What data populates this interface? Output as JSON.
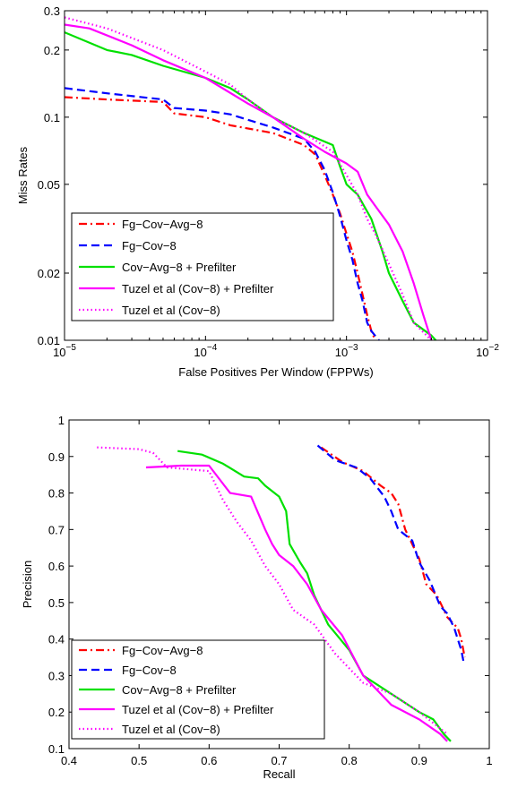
{
  "chart_data": [
    {
      "type": "line",
      "title": "",
      "xlabel": "False Positives Per Window (FPPWs)",
      "ylabel": "Miss Rates",
      "xscale": "log",
      "yscale": "log",
      "xlim": [
        1e-05,
        0.01
      ],
      "ylim": [
        0.01,
        0.3
      ],
      "x_ticks": [
        {
          "value": 1e-05,
          "base": "10",
          "exp": "−5"
        },
        {
          "value": 0.0001,
          "base": "10",
          "exp": "−4"
        },
        {
          "value": 0.001,
          "base": "10",
          "exp": "−3"
        },
        {
          "value": 0.01,
          "base": "10",
          "exp": "−2"
        }
      ],
      "y_ticks": [
        {
          "value": 0.01,
          "label": "0.01"
        },
        {
          "value": 0.02,
          "label": "0.02"
        },
        {
          "value": 0.05,
          "label": "0.05"
        },
        {
          "value": 0.1,
          "label": "0.1"
        },
        {
          "value": 0.2,
          "label": "0.2"
        },
        {
          "value": 0.3,
          "label": "0.3"
        }
      ],
      "grid": false,
      "legend_position": "bottom-left",
      "series": [
        {
          "name": "Fg−Cov−Avg−8",
          "color": "#ff0000",
          "dash": "dashdot",
          "points": [
            [
              1e-05,
              0.123
            ],
            [
              2e-05,
              0.12
            ],
            [
              5e-05,
              0.117
            ],
            [
              6e-05,
              0.104
            ],
            [
              0.0001,
              0.1
            ],
            [
              0.00015,
              0.092
            ],
            [
              0.0003,
              0.085
            ],
            [
              0.0005,
              0.075
            ],
            [
              0.0006,
              0.068
            ],
            [
              0.0007,
              0.055
            ],
            [
              0.0008,
              0.045
            ],
            [
              0.0009,
              0.037
            ],
            [
              0.001,
              0.03
            ],
            [
              0.0011,
              0.025
            ],
            [
              0.0012,
              0.02
            ],
            [
              0.0013,
              0.016
            ],
            [
              0.0014,
              0.013
            ],
            [
              0.0015,
              0.011
            ],
            [
              0.0016,
              0.01
            ]
          ]
        },
        {
          "name": "Fg−Cov−8",
          "color": "#0000ff",
          "dash": "dashed",
          "points": [
            [
              1e-05,
              0.135
            ],
            [
              2e-05,
              0.128
            ],
            [
              5e-05,
              0.12
            ],
            [
              6e-05,
              0.11
            ],
            [
              0.0001,
              0.107
            ],
            [
              0.00015,
              0.103
            ],
            [
              0.0003,
              0.09
            ],
            [
              0.0005,
              0.08
            ],
            [
              0.0006,
              0.07
            ],
            [
              0.0007,
              0.058
            ],
            [
              0.0008,
              0.046
            ],
            [
              0.0009,
              0.036
            ],
            [
              0.001,
              0.028
            ],
            [
              0.0011,
              0.023
            ],
            [
              0.0012,
              0.018
            ],
            [
              0.0013,
              0.015
            ],
            [
              0.0014,
              0.012
            ],
            [
              0.0015,
              0.011
            ],
            [
              0.0017,
              0.01
            ]
          ]
        },
        {
          "name": "Cov−Avg−8 + Prefilter",
          "color": "#00e000",
          "dash": "solid",
          "points": [
            [
              1e-05,
              0.24
            ],
            [
              2e-05,
              0.2
            ],
            [
              3e-05,
              0.19
            ],
            [
              5e-05,
              0.17
            ],
            [
              0.0001,
              0.15
            ],
            [
              0.00015,
              0.135
            ],
            [
              0.0002,
              0.12
            ],
            [
              0.0003,
              0.1
            ],
            [
              0.0005,
              0.085
            ],
            [
              0.0008,
              0.075
            ],
            [
              0.0009,
              0.06
            ],
            [
              0.001,
              0.05
            ],
            [
              0.0012,
              0.045
            ],
            [
              0.0015,
              0.035
            ],
            [
              0.0018,
              0.025
            ],
            [
              0.002,
              0.02
            ],
            [
              0.0025,
              0.015
            ],
            [
              0.003,
              0.012
            ],
            [
              0.004,
              0.0105
            ],
            [
              0.0043,
              0.01
            ]
          ]
        },
        {
          "name": "Tuzel et al (Cov−8) + Prefilter",
          "color": "#ff00ff",
          "dash": "solid",
          "points": [
            [
              1e-05,
              0.26
            ],
            [
              1.5e-05,
              0.25
            ],
            [
              3e-05,
              0.21
            ],
            [
              5e-05,
              0.18
            ],
            [
              0.0001,
              0.15
            ],
            [
              0.0002,
              0.115
            ],
            [
              0.0003,
              0.1
            ],
            [
              0.0005,
              0.08
            ],
            [
              0.0007,
              0.07
            ],
            [
              0.001,
              0.062
            ],
            [
              0.0012,
              0.057
            ],
            [
              0.0014,
              0.045
            ],
            [
              0.0016,
              0.04
            ],
            [
              0.002,
              0.033
            ],
            [
              0.0025,
              0.025
            ],
            [
              0.003,
              0.018
            ],
            [
              0.0035,
              0.013
            ],
            [
              0.004,
              0.01
            ]
          ]
        },
        {
          "name": "Tuzel et al (Cov−8)",
          "color": "#ff00ff",
          "dash": "dotted",
          "points": [
            [
              1e-05,
              0.28
            ],
            [
              2e-05,
              0.25
            ],
            [
              5e-05,
              0.2
            ],
            [
              0.0001,
              0.16
            ],
            [
              0.00015,
              0.14
            ],
            [
              0.0002,
              0.12
            ],
            [
              0.0003,
              0.1
            ],
            [
              0.0005,
              0.085
            ],
            [
              0.0008,
              0.07
            ],
            [
              0.001,
              0.055
            ],
            [
              0.0012,
              0.045
            ],
            [
              0.0014,
              0.035
            ],
            [
              0.0016,
              0.03
            ],
            [
              0.002,
              0.022
            ],
            [
              0.0025,
              0.016
            ],
            [
              0.003,
              0.012
            ],
            [
              0.004,
              0.01
            ]
          ]
        }
      ]
    },
    {
      "type": "line",
      "title": "",
      "xlabel": "Recall",
      "ylabel": "Precision",
      "xscale": "linear",
      "yscale": "linear",
      "xlim": [
        0.4,
        1
      ],
      "ylim": [
        0.1,
        1
      ],
      "x_ticks": [
        {
          "value": 0.4,
          "label": "0.4"
        },
        {
          "value": 0.5,
          "label": "0.5"
        },
        {
          "value": 0.6,
          "label": "0.6"
        },
        {
          "value": 0.7,
          "label": "0.7"
        },
        {
          "value": 0.8,
          "label": "0.8"
        },
        {
          "value": 0.9,
          "label": "0.9"
        },
        {
          "value": 1,
          "label": "1"
        }
      ],
      "y_ticks": [
        {
          "value": 0.1,
          "label": "0.1"
        },
        {
          "value": 0.2,
          "label": "0.2"
        },
        {
          "value": 0.3,
          "label": "0.3"
        },
        {
          "value": 0.4,
          "label": "0.4"
        },
        {
          "value": 0.5,
          "label": "0.5"
        },
        {
          "value": 0.6,
          "label": "0.6"
        },
        {
          "value": 0.7,
          "label": "0.7"
        },
        {
          "value": 0.8,
          "label": "0.8"
        },
        {
          "value": 0.9,
          "label": "0.9"
        },
        {
          "value": 1,
          "label": "1"
        }
      ],
      "grid": false,
      "legend_position": "bottom-left",
      "series": [
        {
          "name": "Fg−Cov−Avg−8",
          "color": "#ff0000",
          "dash": "dashdot",
          "points": [
            [
              0.76,
              0.925
            ],
            [
              0.79,
              0.885
            ],
            [
              0.82,
              0.86
            ],
            [
              0.845,
              0.82
            ],
            [
              0.86,
              0.8
            ],
            [
              0.87,
              0.77
            ],
            [
              0.88,
              0.7
            ],
            [
              0.89,
              0.66
            ],
            [
              0.9,
              0.62
            ],
            [
              0.91,
              0.55
            ],
            [
              0.925,
              0.52
            ],
            [
              0.94,
              0.46
            ],
            [
              0.955,
              0.43
            ],
            [
              0.96,
              0.4
            ],
            [
              0.965,
              0.35
            ]
          ]
        },
        {
          "name": "Fg−Cov−8",
          "color": "#0000ff",
          "dash": "dashed",
          "points": [
            [
              0.755,
              0.93
            ],
            [
              0.78,
              0.89
            ],
            [
              0.81,
              0.87
            ],
            [
              0.83,
              0.84
            ],
            [
              0.85,
              0.79
            ],
            [
              0.86,
              0.75
            ],
            [
              0.87,
              0.7
            ],
            [
              0.89,
              0.67
            ],
            [
              0.9,
              0.61
            ],
            [
              0.915,
              0.56
            ],
            [
              0.93,
              0.49
            ],
            [
              0.94,
              0.47
            ],
            [
              0.95,
              0.43
            ],
            [
              0.96,
              0.37
            ],
            [
              0.963,
              0.34
            ]
          ]
        },
        {
          "name": "Cov−Avg−8 + Prefilter",
          "color": "#00e000",
          "dash": "solid",
          "points": [
            [
              0.555,
              0.915
            ],
            [
              0.59,
              0.905
            ],
            [
              0.62,
              0.88
            ],
            [
              0.65,
              0.845
            ],
            [
              0.67,
              0.84
            ],
            [
              0.68,
              0.82
            ],
            [
              0.7,
              0.79
            ],
            [
              0.71,
              0.75
            ],
            [
              0.715,
              0.66
            ],
            [
              0.73,
              0.61
            ],
            [
              0.74,
              0.58
            ],
            [
              0.75,
              0.52
            ],
            [
              0.77,
              0.44
            ],
            [
              0.8,
              0.37
            ],
            [
              0.82,
              0.3
            ],
            [
              0.86,
              0.25
            ],
            [
              0.9,
              0.2
            ],
            [
              0.92,
              0.18
            ],
            [
              0.935,
              0.14
            ],
            [
              0.945,
              0.12
            ]
          ]
        },
        {
          "name": "Tuzel et al (Cov−8) + Prefilter",
          "color": "#ff00ff",
          "dash": "solid",
          "points": [
            [
              0.51,
              0.87
            ],
            [
              0.56,
              0.875
            ],
            [
              0.6,
              0.875
            ],
            [
              0.63,
              0.8
            ],
            [
              0.66,
              0.79
            ],
            [
              0.68,
              0.7
            ],
            [
              0.69,
              0.66
            ],
            [
              0.7,
              0.63
            ],
            [
              0.72,
              0.6
            ],
            [
              0.74,
              0.55
            ],
            [
              0.76,
              0.48
            ],
            [
              0.79,
              0.41
            ],
            [
              0.82,
              0.3
            ],
            [
              0.86,
              0.22
            ],
            [
              0.9,
              0.18
            ],
            [
              0.93,
              0.14
            ],
            [
              0.94,
              0.12
            ]
          ]
        },
        {
          "name": "Tuzel et al (Cov−8)",
          "color": "#ff00ff",
          "dash": "dotted",
          "points": [
            [
              0.44,
              0.925
            ],
            [
              0.5,
              0.92
            ],
            [
              0.52,
              0.91
            ],
            [
              0.54,
              0.87
            ],
            [
              0.6,
              0.86
            ],
            [
              0.62,
              0.78
            ],
            [
              0.64,
              0.72
            ],
            [
              0.66,
              0.67
            ],
            [
              0.68,
              0.6
            ],
            [
              0.7,
              0.55
            ],
            [
              0.72,
              0.48
            ],
            [
              0.75,
              0.44
            ],
            [
              0.78,
              0.36
            ],
            [
              0.82,
              0.28
            ],
            [
              0.86,
              0.25
            ],
            [
              0.9,
              0.2
            ],
            [
              0.94,
              0.14
            ]
          ]
        }
      ]
    }
  ]
}
